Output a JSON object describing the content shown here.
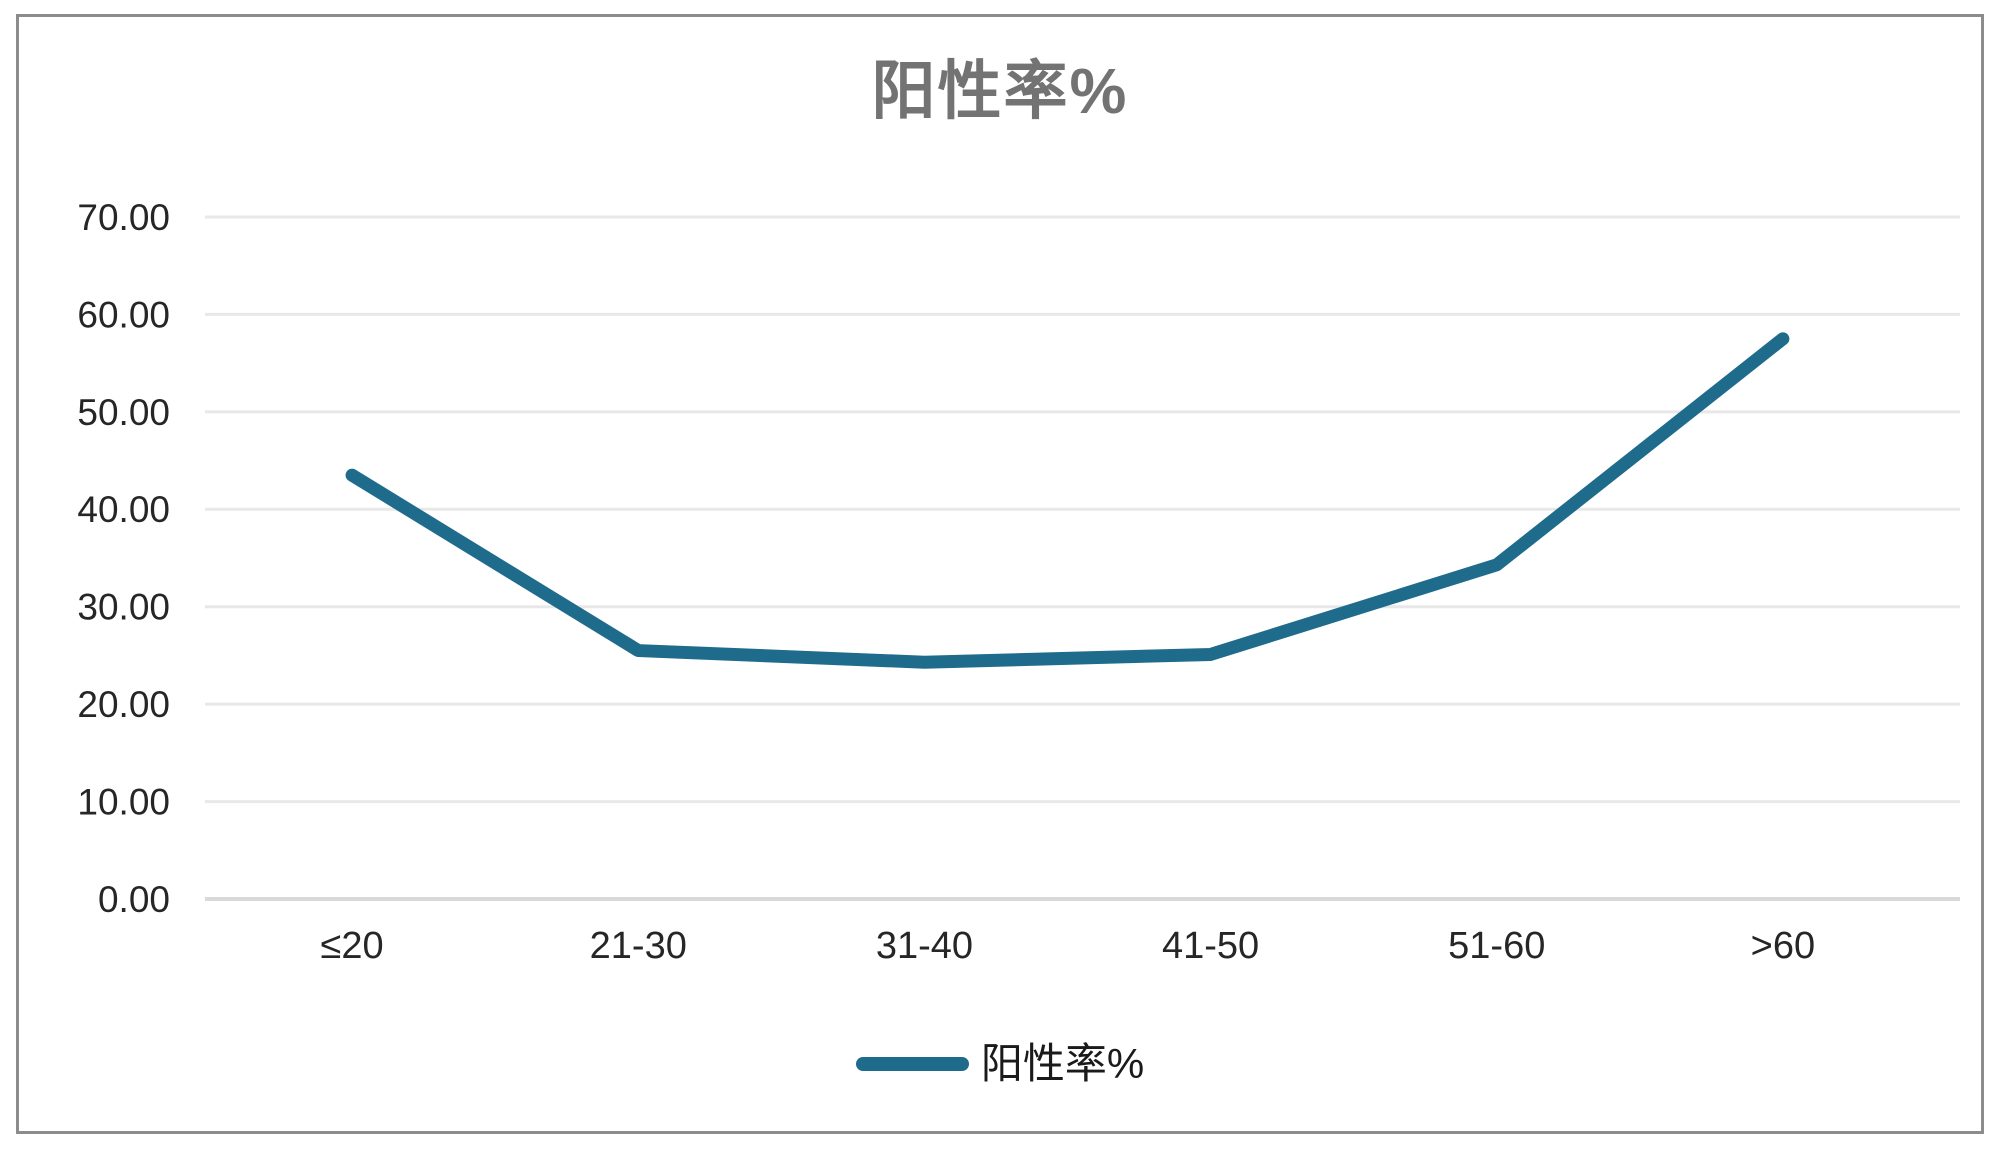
{
  "window": {
    "background": "#ffffff",
    "frame_border_color": "#8c8c8c"
  },
  "chart_data": {
    "type": "line",
    "title": "阳性率%",
    "categories": [
      "≤20",
      "21-30",
      "31-40",
      "41-50",
      "51-60",
      ">60"
    ],
    "series": [
      {
        "name": "阳性率%",
        "values": [
          43.5,
          25.5,
          24.3,
          25.1,
          34.3,
          57.5
        ],
        "color": "#1f6b8c"
      }
    ],
    "xlabel": "",
    "ylabel": "",
    "ylim": [
      0,
      70
    ],
    "y_ticks": [
      0,
      10,
      20,
      30,
      40,
      50,
      60,
      70
    ],
    "y_tick_labels": [
      "0.00",
      "10.00",
      "20.00",
      "30.00",
      "40.00",
      "50.00",
      "60.00",
      "70.00"
    ],
    "grid": "horizontal",
    "legend_position": "bottom",
    "colors": {
      "title_text": "#737373",
      "axis_text": "#262626",
      "gridline": "#e8e8e8",
      "axis_line": "#d9d9d9",
      "series_line": "#1f6b8c"
    }
  }
}
